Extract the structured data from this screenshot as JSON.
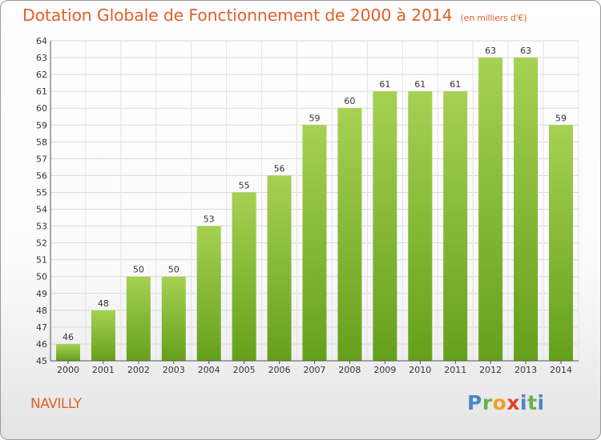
{
  "title": "Dotation Globale de Fonctionnement de 2000 à 2014",
  "subtitle": "(en milliers d'€)",
  "commune": "NAVILLY",
  "logo": "Proxiti",
  "colors": {
    "title": "#e0602a",
    "bar_light": "#a6d152",
    "bar_dark": "#65a01a",
    "grid": "#d8d8d8"
  },
  "chart_data": {
    "type": "bar",
    "categories": [
      "2000",
      "2001",
      "2002",
      "2003",
      "2004",
      "2005",
      "2006",
      "2007",
      "2008",
      "2009",
      "2010",
      "2011",
      "2012",
      "2013",
      "2014"
    ],
    "values": [
      46,
      48,
      50,
      50,
      53,
      55,
      56,
      59,
      60,
      61,
      61,
      61,
      63,
      63,
      59
    ],
    "ylim": [
      45,
      64
    ],
    "yticks": [
      45,
      46,
      47,
      48,
      49,
      50,
      51,
      52,
      53,
      54,
      55,
      56,
      57,
      58,
      59,
      60,
      61,
      62,
      63,
      64
    ],
    "data_labels": true,
    "grid": true
  }
}
